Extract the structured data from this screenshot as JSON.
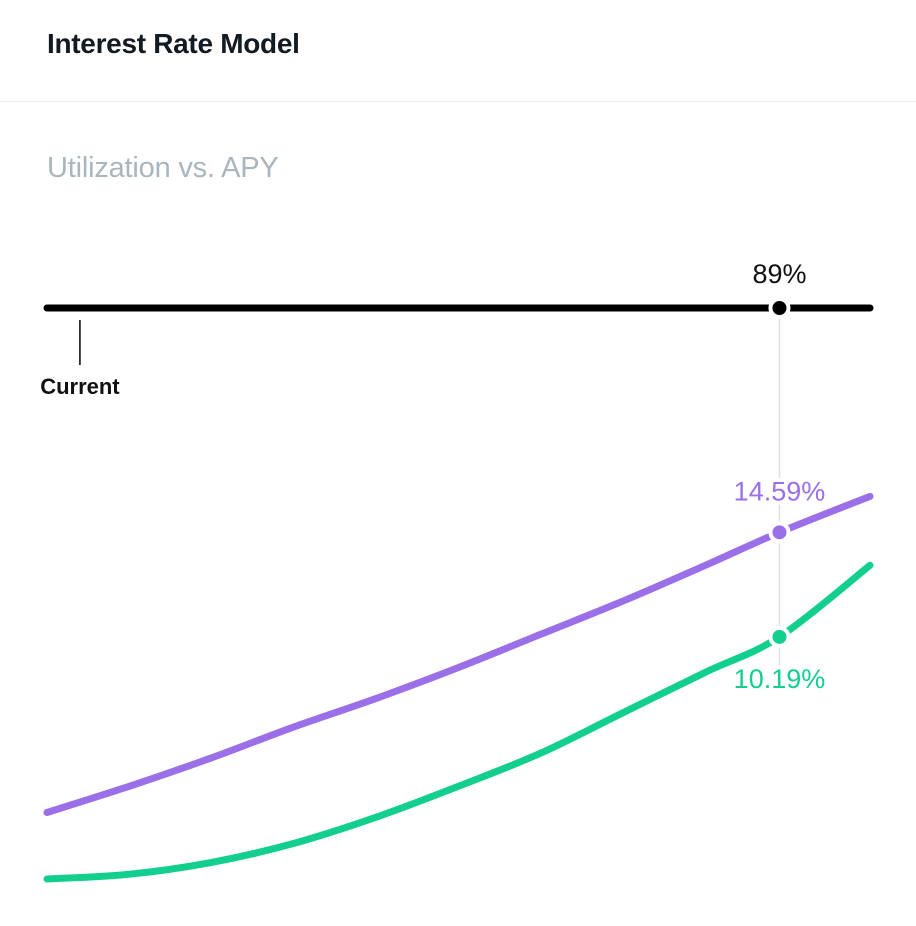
{
  "header": {
    "title": "Interest Rate Model"
  },
  "chart_data": {
    "type": "line",
    "title": "Utilization vs. APY",
    "xlabel": "",
    "ylabel": "",
    "x_range": [
      0,
      100
    ],
    "y_range": [
      0,
      21
    ],
    "grid": false,
    "legend": "none",
    "current_label": "Current",
    "current_utilization": 4,
    "selected": {
      "utilization": 89,
      "utilization_label": "89%"
    },
    "x": [
      0,
      10,
      20,
      30,
      40,
      50,
      60,
      70,
      80,
      89,
      100
    ],
    "series": [
      {
        "color": "#9b6fe8",
        "values": [
          2.8,
          3.9,
          5.1,
          6.4,
          7.6,
          8.9,
          10.3,
          11.7,
          13.2,
          14.59,
          16.1
        ],
        "point_label": "14.59%"
      },
      {
        "color": "#12cf8e",
        "values": [
          0.0,
          0.2,
          0.7,
          1.5,
          2.6,
          3.9,
          5.3,
          7.0,
          8.7,
          10.19,
          13.2
        ],
        "point_label": "10.19%"
      }
    ],
    "colors": {
      "axis": "#000000",
      "guide": "#e0e0e0"
    }
  }
}
